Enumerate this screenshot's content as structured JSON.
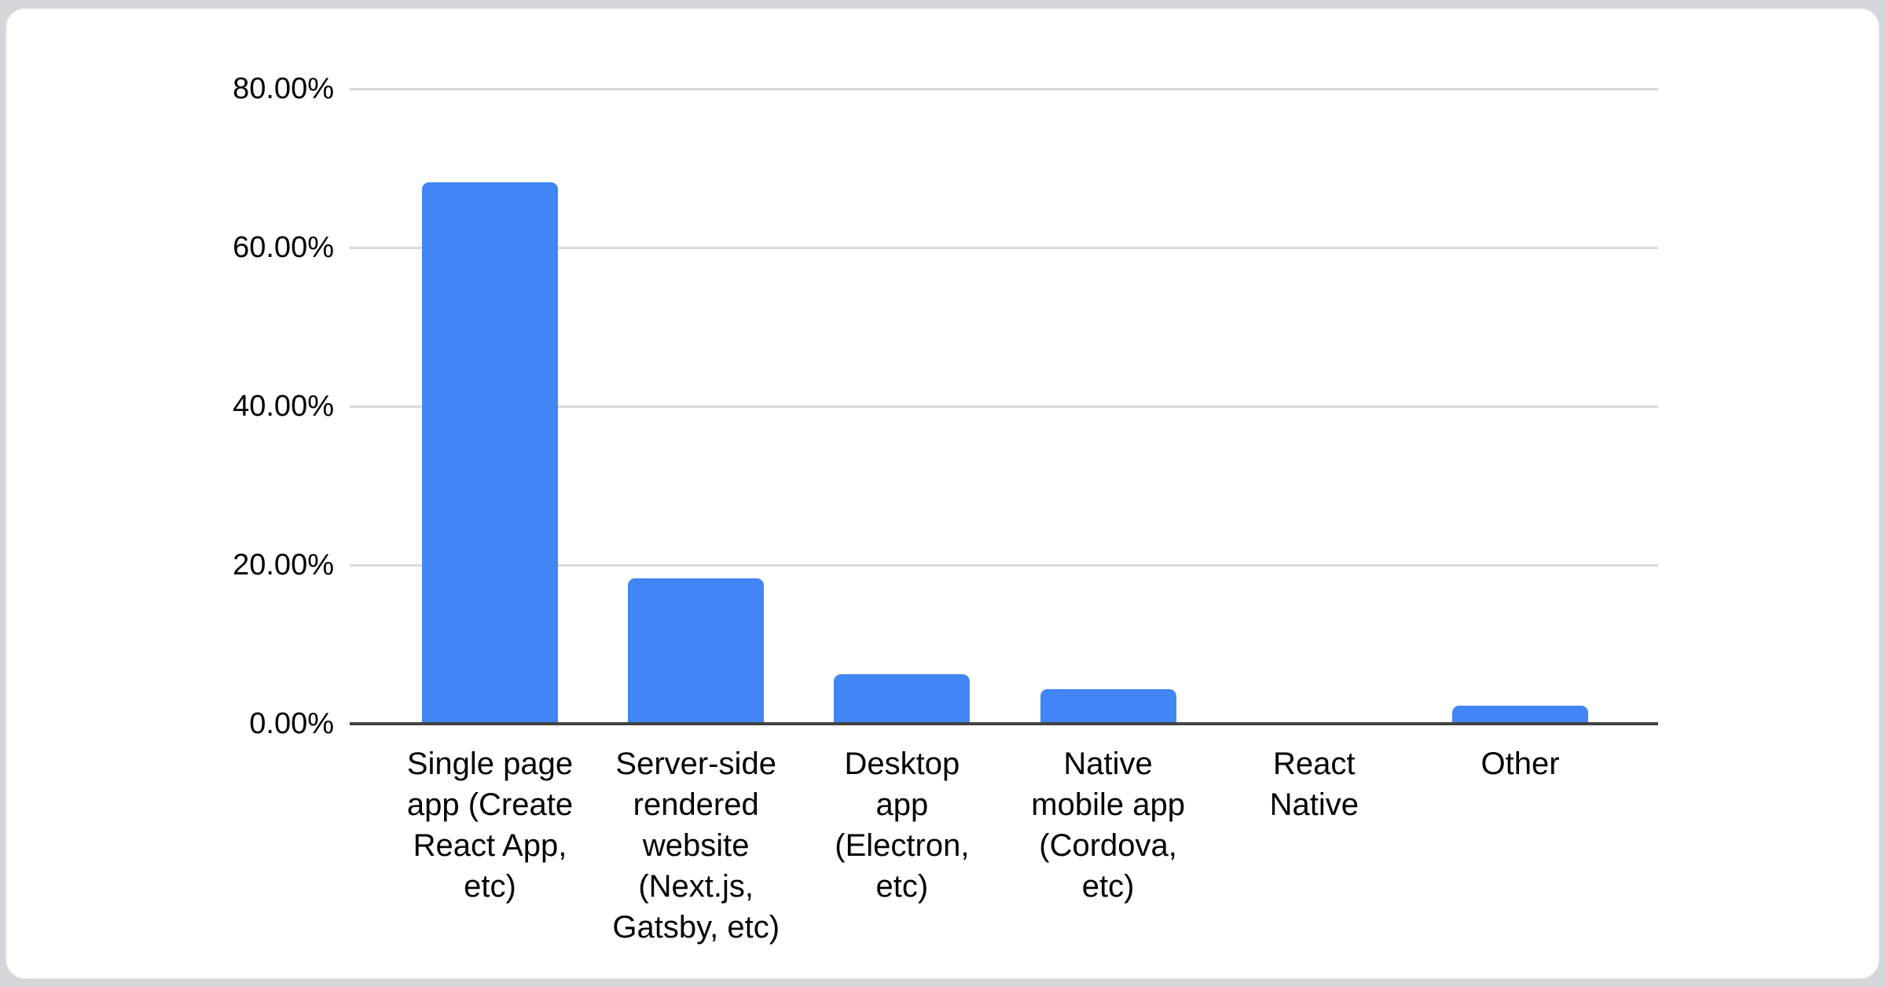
{
  "page": {
    "background_color": "#d4d6d9",
    "card_background": "#ffffff",
    "card_border_color": "#d9dbde"
  },
  "chart_data": {
    "type": "bar",
    "title": "",
    "categories": [
      "Single page app (Create React App, etc)",
      "Server-side rendered website (Next.js, Gatsby, etc)",
      "Desktop app (Electron, etc)",
      "Native mobile app (Cordova, etc)",
      "React Native",
      "Other"
    ],
    "category_lines": [
      [
        "Single page",
        "app (Create",
        "React App,",
        "etc)"
      ],
      [
        "Server-side",
        "rendered",
        "website",
        "(Next.js,",
        "Gatsby, etc)"
      ],
      [
        "Desktop",
        "app",
        "(Electron,",
        "etc)"
      ],
      [
        "Native",
        "mobile app",
        "(Cordova,",
        "etc)"
      ],
      [
        "React",
        "Native"
      ],
      [
        "Other"
      ]
    ],
    "values": [
      68.2,
      18.3,
      6.2,
      4.4,
      0,
      2.3
    ],
    "value_unit": "%",
    "ylabel": "",
    "xlabel": "",
    "ylim": [
      0,
      80
    ],
    "y_ticks": [
      {
        "value": 0,
        "label": "0.00%"
      },
      {
        "value": 20,
        "label": "20.00%"
      },
      {
        "value": 40,
        "label": "40.00%"
      },
      {
        "value": 60,
        "label": "60.00%"
      },
      {
        "value": 80,
        "label": "80.00%"
      }
    ],
    "grid": true,
    "legend_position": "none",
    "bar_color": "#4285f4",
    "gridline_color": "#d9d9d9",
    "axis_line_color": "#424242",
    "label_color": "#000000"
  }
}
